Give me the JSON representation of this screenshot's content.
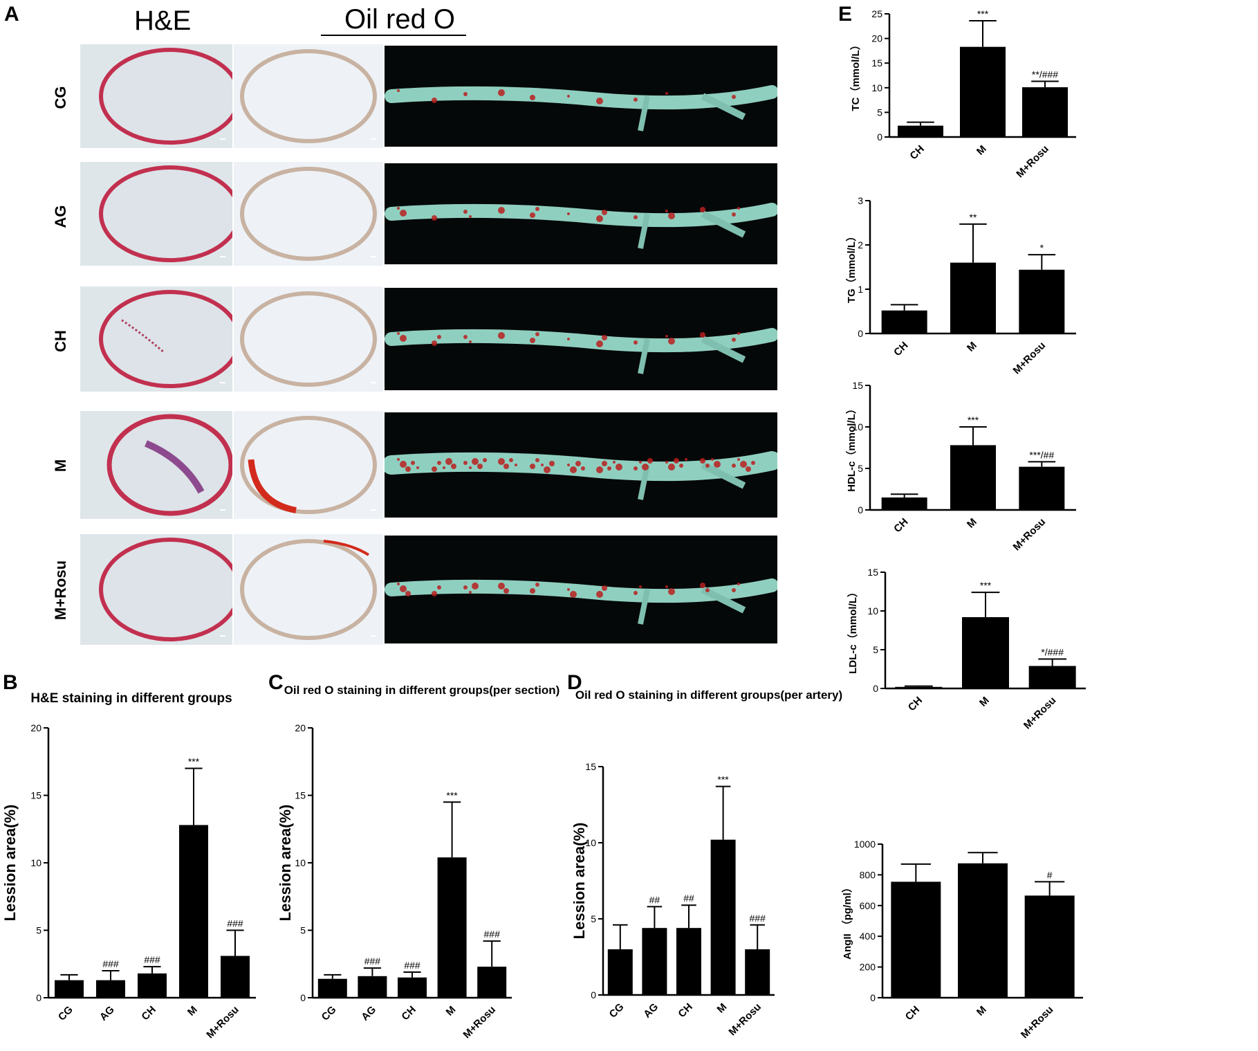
{
  "panelA": {
    "letter": "A",
    "header_he": "H&E",
    "header_oil": "Oil red O",
    "rows": [
      "CG",
      "AG",
      "CH",
      "M",
      "M+Rosu"
    ]
  },
  "chart_data": [
    {
      "id": "B",
      "letter": "B",
      "type": "bar",
      "title": "H&E staining in different groups",
      "ylabel": "Lession area(%)",
      "categories": [
        "CG",
        "AG",
        "CH",
        "M",
        "M+Rosu"
      ],
      "values": [
        1.3,
        1.3,
        1.8,
        12.8,
        3.1
      ],
      "errors": [
        0.4,
        0.7,
        0.5,
        4.2,
        1.9
      ],
      "annotations": [
        "",
        "###",
        "###",
        "***",
        "###"
      ],
      "ylim": [
        0,
        20
      ],
      "yticks": [
        0,
        5,
        10,
        15,
        20
      ]
    },
    {
      "id": "C",
      "letter": "C",
      "type": "bar",
      "title": "Oil red O staining in different groups(per section)",
      "ylabel": "Lession area(%)",
      "categories": [
        "CG",
        "AG",
        "CH",
        "M",
        "M+Rosu"
      ],
      "values": [
        1.4,
        1.6,
        1.5,
        10.4,
        2.3
      ],
      "errors": [
        0.3,
        0.6,
        0.4,
        4.1,
        1.9
      ],
      "annotations": [
        "",
        "###",
        "###",
        "***",
        "###"
      ],
      "ylim": [
        0,
        20
      ],
      "yticks": [
        0,
        5,
        10,
        15,
        20
      ]
    },
    {
      "id": "D",
      "letter": "D",
      "type": "bar",
      "title": "Oil red O staining in different groups(per artery)",
      "ylabel": "Lession area(%)",
      "categories": [
        "CG",
        "AG",
        "CH",
        "M",
        "M+Rosu"
      ],
      "values": [
        3.0,
        4.4,
        4.4,
        10.2,
        3.0
      ],
      "errors": [
        1.6,
        1.4,
        1.5,
        3.5,
        1.6
      ],
      "annotations": [
        "",
        "##",
        "##",
        "***",
        "###"
      ],
      "ylim": [
        0,
        15
      ],
      "yticks": [
        0,
        5,
        10,
        15
      ]
    },
    {
      "id": "E1",
      "letter": "E",
      "type": "bar",
      "title": "",
      "ylabel": "TC（mmol/L）",
      "categories": [
        "CH",
        "M",
        "M+Rosu"
      ],
      "values": [
        2.3,
        18.3,
        10.1
      ],
      "errors": [
        0.7,
        5.3,
        1.2
      ],
      "annotations": [
        "",
        "***",
        "**/###"
      ],
      "ylim": [
        0,
        25
      ],
      "yticks": [
        0,
        5,
        10,
        15,
        20,
        25
      ]
    },
    {
      "id": "E2",
      "letter": "",
      "type": "bar",
      "title": "",
      "ylabel": "TG（mmol/L）",
      "categories": [
        "CH",
        "M",
        "M+Rosu"
      ],
      "values": [
        0.52,
        1.6,
        1.44
      ],
      "errors": [
        0.13,
        0.87,
        0.34
      ],
      "annotations": [
        "",
        "**",
        "*"
      ],
      "ylim": [
        0,
        3
      ],
      "yticks": [
        0,
        1,
        2,
        3
      ]
    },
    {
      "id": "E3",
      "letter": "",
      "type": "bar",
      "title": "",
      "ylabel": "HDL-c（mmol/L）",
      "categories": [
        "CH",
        "M",
        "M+Rosu"
      ],
      "values": [
        1.5,
        7.8,
        5.2
      ],
      "errors": [
        0.4,
        2.2,
        0.6
      ],
      "annotations": [
        "",
        "***",
        "***/##"
      ],
      "ylim": [
        0,
        15
      ],
      "yticks": [
        0,
        5,
        10,
        15
      ]
    },
    {
      "id": "E4",
      "letter": "",
      "type": "bar",
      "title": "",
      "ylabel": "LDL-c（mmol/L）",
      "categories": [
        "CH",
        "M",
        "M+Rosu"
      ],
      "values": [
        0.2,
        9.2,
        2.9
      ],
      "errors": [
        0.1,
        3.2,
        0.9
      ],
      "annotations": [
        "",
        "***",
        "*/###"
      ],
      "ylim": [
        0,
        15
      ],
      "yticks": [
        0,
        5,
        10,
        15
      ]
    },
    {
      "id": "E5",
      "letter": "",
      "type": "bar",
      "title": "",
      "ylabel": "AngII （pg/ml）",
      "categories": [
        "CH",
        "M",
        "M+Rosu"
      ],
      "values": [
        755,
        875,
        665
      ],
      "errors": [
        115,
        70,
        90
      ],
      "annotations": [
        "",
        "",
        "#"
      ],
      "ylim": [
        0,
        1000
      ],
      "yticks": [
        0,
        200,
        400,
        600,
        800,
        1000
      ]
    }
  ]
}
